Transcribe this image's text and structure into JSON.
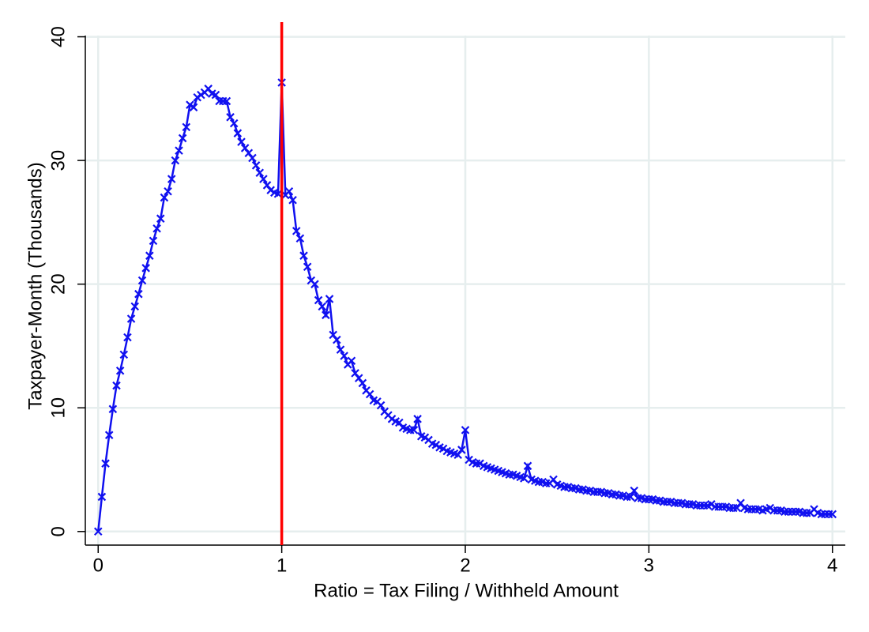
{
  "chart_data": {
    "type": "line",
    "x_label": "Ratio = Tax Filing / Withheld Amount",
    "y_label": "Taxpayer-Month (Thousands)",
    "xlim": [
      -0.07,
      4.07
    ],
    "ylim": [
      -1.1,
      40.1
    ],
    "xticks": [
      0,
      1,
      2,
      3,
      4
    ],
    "yticks": [
      0,
      10,
      20,
      30,
      40
    ],
    "grid": true,
    "marker": "x",
    "reference_line": {
      "x": 1,
      "color": "#ff0000"
    },
    "series": [
      {
        "color": "#1010f0",
        "x": [
          0,
          0.02,
          0.04,
          0.06,
          0.08,
          0.1,
          0.12,
          0.14,
          0.16,
          0.18,
          0.2,
          0.22,
          0.24,
          0.26,
          0.28,
          0.3,
          0.32,
          0.34,
          0.36,
          0.38,
          0.4,
          0.42,
          0.44,
          0.46,
          0.48,
          0.5,
          0.52,
          0.54,
          0.56,
          0.58,
          0.6,
          0.62,
          0.64,
          0.66,
          0.68,
          0.7,
          0.72,
          0.74,
          0.76,
          0.78,
          0.8,
          0.82,
          0.84,
          0.86,
          0.88,
          0.9,
          0.92,
          0.94,
          0.96,
          0.98,
          1,
          1.02,
          1.04,
          1.06,
          1.08,
          1.1,
          1.12,
          1.14,
          1.16,
          1.18,
          1.2,
          1.22,
          1.24,
          1.26,
          1.28,
          1.3,
          1.32,
          1.34,
          1.36,
          1.38,
          1.4,
          1.42,
          1.44,
          1.46,
          1.48,
          1.5,
          1.52,
          1.54,
          1.56,
          1.58,
          1.6,
          1.62,
          1.64,
          1.66,
          1.68,
          1.7,
          1.72,
          1.74,
          1.76,
          1.78,
          1.8,
          1.82,
          1.84,
          1.86,
          1.88,
          1.9,
          1.92,
          1.94,
          1.96,
          1.98,
          2,
          2.02,
          2.04,
          2.06,
          2.08,
          2.1,
          2.12,
          2.14,
          2.16,
          2.18,
          2.2,
          2.22,
          2.24,
          2.26,
          2.28,
          2.3,
          2.32,
          2.34,
          2.36,
          2.38,
          2.4,
          2.42,
          2.44,
          2.46,
          2.48,
          2.5,
          2.52,
          2.54,
          2.56,
          2.58,
          2.6,
          2.62,
          2.64,
          2.66,
          2.68,
          2.7,
          2.72,
          2.74,
          2.76,
          2.78,
          2.8,
          2.82,
          2.84,
          2.86,
          2.88,
          2.9,
          2.92,
          2.94,
          2.96,
          2.98,
          3,
          3.02,
          3.04,
          3.06,
          3.08,
          3.1,
          3.12,
          3.14,
          3.16,
          3.18,
          3.2,
          3.22,
          3.24,
          3.26,
          3.28,
          3.3,
          3.32,
          3.34,
          3.36,
          3.38,
          3.4,
          3.42,
          3.44,
          3.46,
          3.48,
          3.5,
          3.52,
          3.54,
          3.56,
          3.58,
          3.6,
          3.62,
          3.64,
          3.66,
          3.68,
          3.7,
          3.72,
          3.74,
          3.76,
          3.78,
          3.8,
          3.82,
          3.84,
          3.86,
          3.88,
          3.9,
          3.92,
          3.94,
          3.96,
          3.98,
          4
        ],
        "values": [
          0,
          2.8,
          5.5,
          7.8,
          9.9,
          11.8,
          13,
          14.3,
          15.7,
          17.2,
          18.2,
          19.2,
          20.3,
          21.3,
          22.3,
          23.5,
          24.5,
          25.3,
          27,
          27.5,
          28.5,
          30,
          30.8,
          31.8,
          32.7,
          34.5,
          34.3,
          35.1,
          35.3,
          35.5,
          35.8,
          35.4,
          35.3,
          34.8,
          34.8,
          34.8,
          33.5,
          33,
          32.2,
          31.5,
          31,
          30.6,
          30.2,
          29.6,
          29,
          28.5,
          28,
          27.6,
          27.4,
          27.3,
          36.3,
          27.2,
          27.5,
          26.8,
          24.3,
          23.7,
          22.3,
          21.4,
          20.3,
          20,
          18.7,
          18.2,
          17.5,
          18.8,
          15.9,
          15.5,
          14.7,
          14.2,
          13.5,
          13.8,
          12.8,
          12.4,
          12,
          11.4,
          11.1,
          10.6,
          10.5,
          10.2,
          9.7,
          9.4,
          9.1,
          8.9,
          8.8,
          8.4,
          8.3,
          8.2,
          8.2,
          9.1,
          7.7,
          7.6,
          7.4,
          7.1,
          7,
          6.8,
          6.7,
          6.5,
          6.4,
          6.3,
          6.2,
          6.6,
          8.2,
          5.8,
          5.6,
          5.5,
          5.5,
          5.3,
          5.2,
          5.1,
          5,
          4.9,
          4.8,
          4.7,
          4.6,
          4.6,
          4.5,
          4.4,
          4.3,
          5.3,
          4.2,
          4.1,
          4,
          4,
          3.9,
          3.9,
          4.2,
          3.8,
          3.7,
          3.6,
          3.6,
          3.5,
          3.5,
          3.4,
          3.4,
          3.3,
          3.3,
          3.2,
          3.2,
          3.2,
          3.1,
          3.1,
          3,
          3,
          2.9,
          2.9,
          2.8,
          2.8,
          3.3,
          2.7,
          2.7,
          2.6,
          2.6,
          2.6,
          2.5,
          2.5,
          2.4,
          2.4,
          2.4,
          2.3,
          2.3,
          2.3,
          2.2,
          2.2,
          2.2,
          2.1,
          2.1,
          2.1,
          2.1,
          2.2,
          2,
          2,
          2,
          2,
          1.9,
          1.9,
          1.9,
          2.3,
          1.9,
          1.8,
          1.8,
          1.8,
          1.8,
          1.7,
          1.8,
          1.9,
          1.7,
          1.7,
          1.7,
          1.6,
          1.6,
          1.6,
          1.6,
          1.6,
          1.5,
          1.5,
          1.5,
          1.8,
          1.5,
          1.4,
          1.4,
          1.4,
          1.4
        ]
      }
    ]
  }
}
